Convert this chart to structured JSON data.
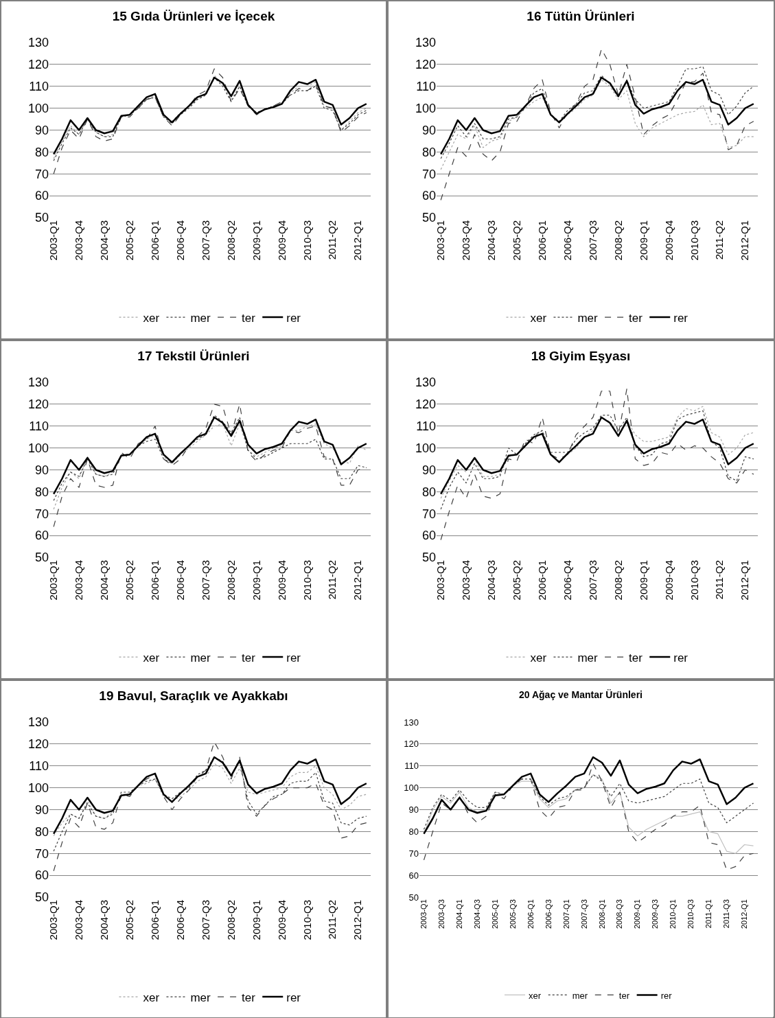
{
  "chart_data": [
    {
      "type": "line",
      "title": "15 Gıda Ürünleri ve İçecek",
      "categories": [
        "2003-Q1",
        null,
        null,
        "2003-Q4",
        null,
        null,
        "2004-Q3",
        null,
        null,
        "2005-Q2",
        null,
        null,
        "2006-Q1",
        null,
        null,
        "2006-Q4",
        null,
        null,
        "2007-Q3",
        null,
        null,
        "2008-Q2",
        null,
        null,
        "2009-Q1",
        null,
        null,
        "2009-Q4",
        null,
        null,
        "2010-Q3",
        null,
        null,
        "2011-Q2",
        null,
        null,
        "2012-Q1",
        null
      ],
      "ylim": [
        50,
        130
      ],
      "yticks": [
        50,
        60,
        70,
        80,
        90,
        100,
        110,
        120,
        130
      ],
      "grid": "y",
      "legend": "bottom",
      "series": [
        {
          "name": "xer",
          "color": "#a6a6a6",
          "line_style": "dotted",
          "values": [
            77,
            85,
            92,
            88,
            95,
            89,
            87,
            88,
            96,
            97,
            100,
            104,
            106,
            96,
            94,
            98,
            100,
            104,
            106,
            115,
            111,
            104,
            110,
            101,
            98,
            99.5,
            101,
            102,
            107,
            110,
            110,
            112,
            101,
            100,
            90,
            94,
            98,
            100
          ]
        },
        {
          "name": "mer",
          "color": "#404040",
          "line_style": "dotted",
          "values": [
            76,
            84,
            91,
            88,
            95,
            89,
            87,
            87,
            96,
            97,
            100,
            104,
            105,
            96,
            93,
            97,
            100,
            104,
            106,
            114,
            110,
            103,
            110,
            101,
            98,
            99.5,
            101,
            102,
            106,
            108,
            108,
            110,
            100,
            99,
            90,
            93,
            97,
            99
          ]
        },
        {
          "name": "ter",
          "color": "#404040",
          "line_style": "dashed",
          "values": [
            70,
            82,
            90,
            86,
            95,
            87,
            85,
            86,
            96,
            96,
            100,
            104,
            105,
            96,
            92,
            97,
            101,
            106,
            108,
            118,
            114,
            103,
            109,
            101,
            97,
            99.5,
            101,
            103,
            106,
            109,
            108,
            111,
            101,
            100,
            89,
            92,
            96,
            98
          ]
        },
        {
          "name": "rer",
          "color": "#000000",
          "line_style": "solid",
          "values": [
            79,
            86,
            94.5,
            90,
            95.5,
            90,
            88.5,
            89.5,
            96.5,
            97,
            101,
            105,
            106.5,
            97,
            93.5,
            97.5,
            101,
            105,
            106.5,
            114,
            111.5,
            105.5,
            112.5,
            101.5,
            97.5,
            99.5,
            100.5,
            102,
            108,
            112,
            111,
            113,
            103,
            101.5,
            92.5,
            95.5,
            100,
            102
          ]
        }
      ]
    },
    {
      "type": "line",
      "title": "16 Tütün Ürünleri",
      "categories": [
        "2003-Q1",
        null,
        null,
        "2003-Q4",
        null,
        null,
        "2004-Q3",
        null,
        null,
        "2005-Q2",
        null,
        null,
        "2006-Q1",
        null,
        null,
        "2006-Q4",
        null,
        null,
        "2007-Q3",
        null,
        null,
        "2008-Q2",
        null,
        null,
        "2009-Q1",
        null,
        null,
        "2009-Q4",
        null,
        null,
        "2010-Q3",
        null,
        null,
        "2011-Q2",
        null,
        null,
        "2012-Q1",
        null
      ],
      "ylim": [
        50,
        130
      ],
      "yticks": [
        50,
        60,
        70,
        80,
        90,
        100,
        110,
        120,
        130
      ],
      "grid": "y",
      "legend": "bottom",
      "series": [
        {
          "name": "xer",
          "color": "#a6a6a6",
          "line_style": "dotted",
          "values": [
            72,
            80,
            88,
            86,
            92,
            82,
            85,
            86,
            94,
            96,
            100,
            103,
            105,
            97,
            94,
            97,
            100,
            104,
            106,
            113,
            110,
            104,
            108,
            93,
            87,
            91,
            93,
            95,
            97,
            98,
            98.5,
            101.5,
            92.5,
            93,
            82,
            83,
            87,
            87
          ]
        },
        {
          "name": "mer",
          "color": "#404040",
          "line_style": "dotted",
          "values": [
            77,
            84,
            92,
            87,
            93,
            86,
            86,
            87,
            95,
            96,
            101,
            107,
            109,
            97,
            94,
            99,
            102,
            107,
            108,
            115,
            111,
            105,
            113,
            104,
            100,
            101,
            102,
            103,
            110,
            118,
            118,
            119,
            108,
            106,
            97,
            101,
            107,
            110
          ]
        },
        {
          "name": "ter",
          "color": "#404040",
          "line_style": "dashed",
          "values": [
            58,
            70,
            82,
            78,
            88,
            79,
            76,
            80,
            93,
            94,
            101,
            109,
            113,
            98,
            91,
            98,
            102,
            110,
            113,
            127,
            120,
            106,
            120,
            105,
            88,
            92,
            95,
            97,
            104,
            112,
            112,
            116,
            98,
            97,
            81,
            83,
            92,
            94
          ]
        },
        {
          "name": "rer",
          "color": "#000000",
          "line_style": "solid",
          "values": [
            79,
            86,
            94.5,
            90,
            95.5,
            90,
            88.5,
            89.5,
            96.5,
            97,
            101,
            105,
            106.5,
            97,
            93.5,
            97.5,
            101,
            105,
            106.5,
            114,
            111.5,
            105.5,
            112.5,
            101.5,
            97.5,
            99.5,
            100.5,
            102,
            108,
            112,
            111,
            113,
            103,
            101.5,
            92.5,
            95.5,
            100,
            102
          ]
        }
      ]
    },
    {
      "type": "line",
      "title": "17 Tekstil Ürünleri",
      "categories": [
        "2003-Q1",
        null,
        null,
        "2003-Q4",
        null,
        null,
        "2004-Q3",
        null,
        null,
        "2005-Q2",
        null,
        null,
        "2006-Q1",
        null,
        null,
        "2006-Q4",
        null,
        null,
        "2007-Q3",
        null,
        null,
        "2008-Q2",
        null,
        null,
        "2009-Q1",
        null,
        null,
        "2009-Q4",
        null,
        null,
        "2010-Q3",
        null,
        null,
        "2011-Q2",
        null,
        null,
        "2012-Q1",
        null
      ],
      "ylim": [
        50,
        130
      ],
      "yticks": [
        50,
        60,
        70,
        80,
        90,
        100,
        110,
        120,
        130
      ],
      "grid": "y",
      "legend": "bottom",
      "series": [
        {
          "name": "xer",
          "color": "#a6a6a6",
          "line_style": "dotted",
          "values": [
            72,
            82,
            89,
            86,
            96,
            88,
            87,
            89,
            97,
            97,
            101,
            104,
            106,
            96,
            93,
            97,
            100,
            103,
            106,
            110,
            111,
            101,
            111,
            99,
            96,
            98,
            100,
            101,
            108,
            108,
            110,
            111,
            102,
            100,
            94,
            93,
            101,
            99
          ]
        },
        {
          "name": "mer",
          "color": "#404040",
          "line_style": "dotted",
          "values": [
            76,
            84,
            89,
            87,
            95,
            88,
            87,
            88,
            97,
            97,
            101,
            103,
            104,
            95,
            93,
            97,
            101,
            104,
            106,
            115,
            112,
            107,
            114,
            99,
            95,
            96,
            98,
            100,
            102,
            102,
            102,
            104,
            95,
            95,
            86,
            86,
            92,
            91
          ]
        },
        {
          "name": "ter",
          "color": "#404040",
          "line_style": "dashed",
          "values": [
            64,
            78,
            86,
            82,
            95,
            83,
            82,
            83,
            98,
            95,
            102,
            104,
            110,
            95,
            92,
            95,
            101,
            105,
            109,
            120,
            119,
            106,
            120,
            98,
            94,
            97,
            99,
            100,
            108,
            107,
            109,
            110,
            96,
            95,
            83,
            83,
            90,
            91
          ]
        },
        {
          "name": "rer",
          "color": "#000000",
          "line_style": "solid",
          "values": [
            79,
            86,
            94.5,
            90,
            95.5,
            90,
            88.5,
            89.5,
            96.5,
            97,
            101,
            105,
            106.5,
            97,
            93.5,
            97.5,
            101,
            105,
            106.5,
            114,
            111.5,
            105.5,
            112.5,
            101.5,
            97.5,
            99.5,
            100.5,
            102,
            108,
            112,
            111,
            113,
            103,
            101.5,
            92.5,
            95.5,
            100,
            102
          ]
        }
      ]
    },
    {
      "type": "line",
      "title": "18 Giyim Eşyası",
      "categories": [
        "2003-Q1",
        null,
        null,
        "2003-Q4",
        null,
        null,
        "2004-Q3",
        null,
        null,
        "2005-Q2",
        null,
        null,
        "2006-Q1",
        null,
        null,
        "2006-Q4",
        null,
        null,
        "2007-Q3",
        null,
        null,
        "2008-Q2",
        null,
        null,
        "2009-Q1",
        null,
        null,
        "2009-Q4",
        null,
        null,
        "2010-Q3",
        null,
        null,
        "2011-Q2",
        null,
        null,
        "2012-Q1",
        null
      ],
      "ylim": [
        50,
        130
      ],
      "yticks": [
        50,
        60,
        70,
        80,
        90,
        100,
        110,
        120,
        130
      ],
      "grid": "y",
      "legend": "bottom",
      "series": [
        {
          "name": "xer",
          "color": "#a6a6a6",
          "line_style": "dotted",
          "values": [
            77,
            85,
            92,
            89,
            95,
            87,
            87,
            88,
            96,
            97,
            101,
            105,
            108,
            97,
            94,
            97,
            100,
            105,
            108,
            114,
            112,
            106,
            113,
            106,
            103,
            103,
            104,
            105,
            114,
            118,
            117,
            119,
            107,
            105,
            97,
            100,
            106,
            107
          ]
        },
        {
          "name": "mer",
          "color": "#404040",
          "line_style": "dotted",
          "values": [
            72,
            82,
            89,
            84,
            93,
            86,
            86,
            87,
            100,
            97,
            102,
            106,
            108,
            98,
            98,
            98,
            104,
            107,
            109,
            115,
            115,
            108,
            114,
            101,
            96,
            97,
            102,
            103,
            113,
            115,
            116,
            117,
            103,
            100,
            87,
            85,
            96,
            95
          ]
        },
        {
          "name": "ter",
          "color": "#404040",
          "line_style": "dashed",
          "values": [
            58,
            71,
            83,
            77,
            88,
            78,
            77,
            79,
            95,
            94,
            104,
            102,
            114,
            97,
            95,
            97,
            106,
            110,
            114,
            126,
            126,
            106,
            127,
            95,
            92,
            93,
            98,
            97,
            102,
            99,
            101,
            100,
            96,
            93,
            86,
            84,
            90,
            88
          ]
        },
        {
          "name": "rer",
          "color": "#000000",
          "line_style": "solid",
          "values": [
            79,
            86,
            94.5,
            90,
            95.5,
            90,
            88.5,
            89.5,
            96.5,
            97,
            101,
            105,
            106.5,
            97,
            93.5,
            97.5,
            101,
            105,
            106.5,
            114,
            111.5,
            105.5,
            112.5,
            101.5,
            97.5,
            99.5,
            100.5,
            102,
            108,
            112,
            111,
            113,
            103,
            101.5,
            92.5,
            95.5,
            100,
            102
          ]
        }
      ]
    },
    {
      "type": "line",
      "title": "19 Bavul, Saraçlık ve Ayakkabı",
      "categories": [
        "2003-Q1",
        null,
        null,
        "2003-Q4",
        null,
        null,
        "2004-Q3",
        null,
        null,
        "2005-Q2",
        null,
        null,
        "2006-Q1",
        null,
        null,
        "2006-Q4",
        null,
        null,
        "2007-Q3",
        null,
        null,
        "2008-Q2",
        null,
        null,
        "2009-Q1",
        null,
        null,
        "2009-Q4",
        null,
        null,
        "2010-Q3",
        null,
        null,
        "2011-Q2",
        null,
        null,
        "2012-Q1",
        null
      ],
      "ylim": [
        50,
        130
      ],
      "yticks": [
        50,
        60,
        70,
        80,
        90,
        100,
        110,
        120,
        130
      ],
      "grid": "y",
      "legend": "bottom",
      "series": [
        {
          "name": "xer",
          "color": "#a6a6a6",
          "line_style": "dotted",
          "values": [
            78,
            84,
            88,
            86,
            94,
            87,
            86,
            89,
            97,
            97,
            101,
            102,
            104,
            96,
            94,
            96,
            99,
            103,
            105,
            111,
            109,
            102,
            109,
            98,
            97,
            98,
            99,
            100,
            105,
            107,
            107,
            110,
            100,
            97,
            90,
            92,
            96,
            97
          ]
        },
        {
          "name": "mer",
          "color": "#404040",
          "line_style": "dotted",
          "values": [
            71,
            80,
            88,
            86,
            93,
            87,
            86,
            88,
            98,
            98,
            101,
            103,
            104,
            97,
            95,
            98,
            100,
            106,
            108,
            114,
            112,
            106,
            112,
            94,
            88,
            92,
            96,
            97,
            102,
            103,
            103,
            107,
            94,
            93,
            84,
            83,
            86,
            87
          ]
        },
        {
          "name": "ter",
          "color": "#404040",
          "line_style": "dashed",
          "values": [
            62,
            75,
            86,
            82,
            93,
            82,
            81,
            84,
            97,
            96,
            101,
            104,
            106,
            96,
            90,
            95,
            99,
            105,
            108,
            121,
            114,
            104,
            114,
            91,
            87,
            92,
            95,
            97,
            100,
            100,
            100,
            102,
            92,
            90,
            77,
            78,
            83,
            84
          ]
        },
        {
          "name": "rer",
          "color": "#000000",
          "line_style": "solid",
          "values": [
            79,
            86,
            94.5,
            90,
            95.5,
            90,
            88.5,
            89.5,
            96.5,
            97,
            101,
            105,
            106.5,
            97,
            93.5,
            97.5,
            101,
            105,
            106.5,
            114,
            111.5,
            105.5,
            112.5,
            101.5,
            97.5,
            99.5,
            100.5,
            102,
            108,
            112,
            111,
            113,
            103,
            101.5,
            92.5,
            95.5,
            100,
            102
          ]
        }
      ]
    },
    {
      "type": "line",
      "title": "20 Ağaç ve Mantar Ürünleri",
      "categories": [
        "2003-Q1",
        null,
        "2003-Q3",
        null,
        "2004-Q1",
        null,
        "2004-Q3",
        null,
        "2005-Q1",
        null,
        "2005-Q3",
        null,
        "2006-Q1",
        null,
        "2006-Q3",
        null,
        "2007-Q1",
        null,
        "2007-Q3",
        null,
        "2008-Q1",
        null,
        "2008-Q3",
        null,
        "2009-Q1",
        null,
        "2009-Q3",
        null,
        "2010-Q1",
        null,
        "2010-Q3",
        null,
        "2011-Q1",
        null,
        "2011-Q3",
        null,
        "2012-Q1",
        null
      ],
      "ylim": [
        50,
        130
      ],
      "yticks": [
        50,
        60,
        70,
        80,
        90,
        100,
        110,
        120,
        130
      ],
      "grid": "y",
      "legend": "bottom",
      "series": [
        {
          "name": "xer",
          "color": "#c0c0c0",
          "line_style": "solid",
          "values": [
            79,
            90,
            96,
            93,
            98,
            91,
            89,
            90,
            98,
            97,
            101,
            103,
            103,
            95,
            91,
            94,
            95,
            99,
            100,
            106,
            104,
            93,
            98,
            82,
            78,
            81,
            83,
            85,
            87,
            87,
            88,
            89,
            80,
            79,
            71,
            70,
            74,
            73.5
          ]
        },
        {
          "name": "mer",
          "color": "#404040",
          "line_style": "dotted",
          "values": [
            81,
            91,
            97,
            94,
            99,
            94,
            91,
            91,
            98,
            97,
            101,
            104,
            104,
            96,
            92,
            95,
            96,
            99,
            100,
            106,
            103,
            96,
            102,
            94,
            93,
            94,
            95,
            96,
            99,
            102,
            102,
            104,
            93,
            91,
            84,
            87,
            90,
            93
          ]
        },
        {
          "name": "ter",
          "color": "#404040",
          "line_style": "dashed",
          "values": [
            67,
            80,
            93,
            90,
            96,
            88,
            84,
            87,
            97,
            95,
            101,
            104,
            104,
            90,
            86,
            91,
            92,
            99,
            99,
            111,
            103,
            91,
            98,
            80,
            75,
            78,
            81,
            83,
            87,
            89,
            89,
            92,
            75,
            74,
            62.5,
            64,
            69,
            70
          ]
        },
        {
          "name": "rer",
          "color": "#000000",
          "line_style": "solid",
          "values": [
            79,
            86,
            94.5,
            90,
            95.5,
            90,
            88.5,
            89.5,
            96.5,
            97,
            101,
            105,
            106.5,
            97,
            93.5,
            97.5,
            101,
            105,
            106.5,
            114,
            111.5,
            105.5,
            112.5,
            101.5,
            97.5,
            99.5,
            100.5,
            102,
            108,
            112,
            111,
            113,
            103,
            101.5,
            92.5,
            95.5,
            100,
            102
          ]
        }
      ]
    }
  ]
}
